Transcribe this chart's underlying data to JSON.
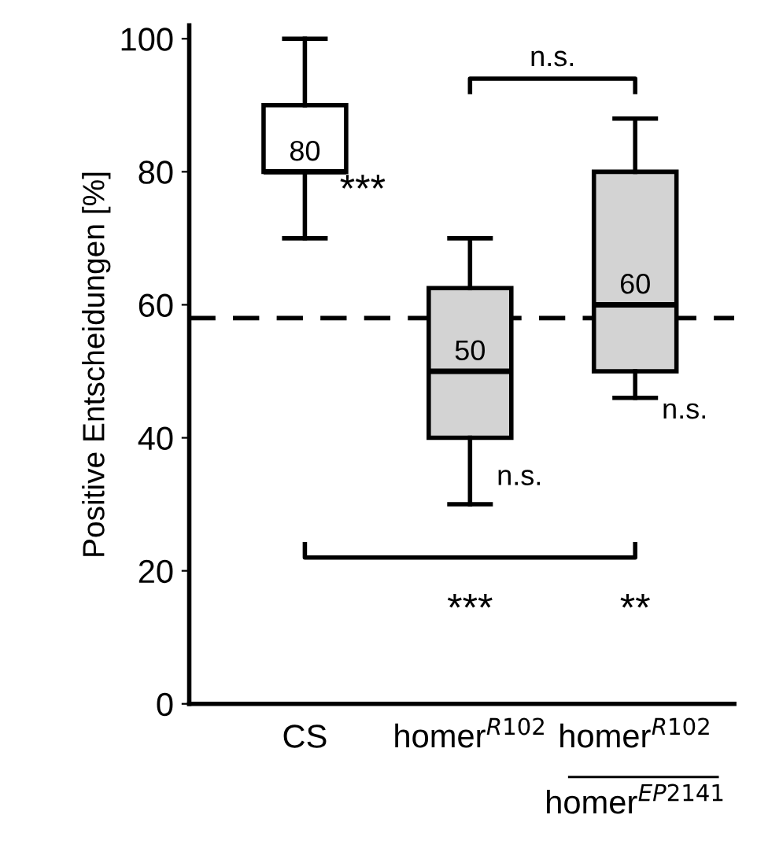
{
  "chart_data": {
    "type": "box",
    "ylabel": "Positive Entscheidungen [%]",
    "categories": [
      "CS",
      "homer$^{R102}$",
      "homer$^{R102}$\nhomer$^{EP2141}$"
    ],
    "boxes": [
      {
        "low": 70,
        "q1": 80,
        "median": 80,
        "q3": 90,
        "high": 100
      },
      {
        "low": 30,
        "q1": 40,
        "median": 50,
        "q3": 62.5,
        "high": 70
      },
      {
        "low": 46,
        "q1": 50,
        "median": 60,
        "q3": 80,
        "high": 88
      }
    ],
    "colors": [
      "#ffffff",
      "#d3d3d3",
      "#d3d3d3"
    ],
    "value_labels": [
      "80",
      "50",
      "60"
    ],
    "ylim": [
      0,
      102
    ],
    "yticks": [
      0,
      20,
      40,
      60,
      80,
      100
    ],
    "ref_lines": [
      {
        "axis": "y",
        "value": 58,
        "line_style": "dashed",
        "color": "#000000"
      }
    ],
    "annotations": [
      "***",
      "n.s.",
      "n.s.",
      "n.s.",
      "***",
      "**"
    ],
    "grid": false
  }
}
